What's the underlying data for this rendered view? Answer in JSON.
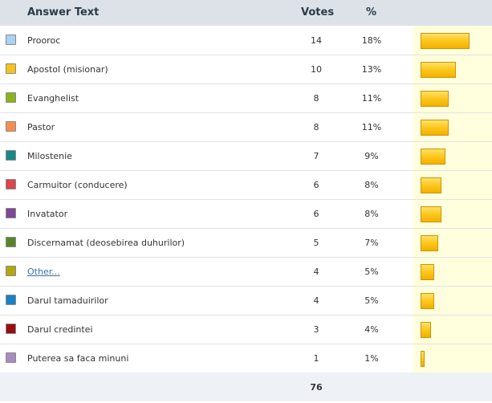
{
  "table": {
    "columns": {
      "answer": "Answer Text",
      "votes": "Votes",
      "percent": "%"
    },
    "rows": [
      {
        "answer": "Prooroc",
        "votes": "14",
        "percent": "18%",
        "color": "#a9d2f3",
        "link": false
      },
      {
        "answer": "Apostol (misionar)",
        "votes": "10",
        "percent": "13%",
        "color": "#f6c21d",
        "link": false
      },
      {
        "answer": "Evanghelist",
        "votes": "8",
        "percent": "11%",
        "color": "#8cb31a",
        "link": false
      },
      {
        "answer": "Pastor",
        "votes": "8",
        "percent": "11%",
        "color": "#f58d52",
        "link": false
      },
      {
        "answer": "Milostenie",
        "votes": "7",
        "percent": "9%",
        "color": "#178a86",
        "link": false
      },
      {
        "answer": "Carmuitor (conducere)",
        "votes": "6",
        "percent": "8%",
        "color": "#d9464c",
        "link": false
      },
      {
        "answer": "Invatator",
        "votes": "6",
        "percent": "8%",
        "color": "#7f4894",
        "link": false
      },
      {
        "answer": "Discernamat (deosebirea duhurilor)",
        "votes": "5",
        "percent": "7%",
        "color": "#5a8429",
        "link": false
      },
      {
        "answer": "Other...",
        "votes": "4",
        "percent": "5%",
        "color": "#b2a70f",
        "link": true
      },
      {
        "answer": "Darul tamaduirilor",
        "votes": "4",
        "percent": "5%",
        "color": "#1584c7",
        "link": false
      },
      {
        "answer": "Darul credintei",
        "votes": "3",
        "percent": "4%",
        "color": "#990c12",
        "link": false
      },
      {
        "answer": "Puterea sa faca minuni",
        "votes": "1",
        "percent": "1%",
        "color": "#a88bc1",
        "link": false
      }
    ],
    "total_votes": "76"
  }
}
